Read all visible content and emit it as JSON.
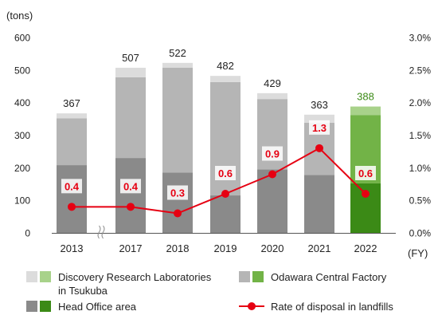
{
  "chart_data": {
    "type": "bar",
    "categories": [
      "2013",
      "2017",
      "2018",
      "2019",
      "2020",
      "2021",
      "2022"
    ],
    "highlight_category": "2022",
    "axis_break_after": "2013",
    "y_unit": "(tons)",
    "x_unit": "(FY)",
    "ylim": [
      0,
      600
    ],
    "y_ticks": [
      "0",
      "100",
      "200",
      "300",
      "400",
      "500",
      "600"
    ],
    "y2lim": [
      0,
      3.0
    ],
    "y2_ticks": [
      "0.0%",
      "0.5%",
      "1.0%",
      "1.5%",
      "2.0%",
      "2.5%",
      "3.0%"
    ],
    "grid": false,
    "totals": [
      "367",
      "507",
      "522",
      "482",
      "429",
      "363",
      "388"
    ],
    "series": [
      {
        "name": "Head Office area",
        "values": [
          208,
          230,
          185,
          115,
          195,
          178,
          152
        ],
        "color": "#8a8a8a",
        "highlight_color": "#3b8a16"
      },
      {
        "name": "Odawara Central Factory",
        "values": [
          144,
          248,
          322,
          348,
          216,
          160,
          210
        ],
        "color": "#b5b5b5",
        "highlight_color": "#72b347"
      },
      {
        "name": "Discovery Research Laboratories in Tsukuba",
        "values": [
          15,
          29,
          15,
          19,
          18,
          25,
          26
        ],
        "color": "#dcdcdc",
        "highlight_color": "#a8d28a"
      }
    ],
    "line": {
      "name": "Rate of disposal in landfills",
      "values": [
        0.4,
        0.4,
        0.3,
        0.6,
        0.9,
        1.3,
        0.6
      ],
      "labels": [
        "0.4",
        "0.4",
        "0.3",
        "0.6",
        "0.9",
        "1.3",
        "0.6"
      ],
      "color": "#e60012"
    },
    "legend": [
      {
        "label_lines": [
          "Discovery Research Laboratories",
          "in Tsukuba"
        ],
        "colors": [
          "#dcdcdc",
          "#a8d28a"
        ]
      },
      {
        "label_lines": [
          "Odawara Central Factory"
        ],
        "colors": [
          "#b5b5b5",
          "#72b347"
        ]
      },
      {
        "label_lines": [
          "Head Office area"
        ],
        "colors": [
          "#8a8a8a",
          "#3b8a16"
        ]
      },
      {
        "label_lines": [
          "Rate of disposal in landfills"
        ],
        "line_color": "#e60012"
      }
    ]
  }
}
